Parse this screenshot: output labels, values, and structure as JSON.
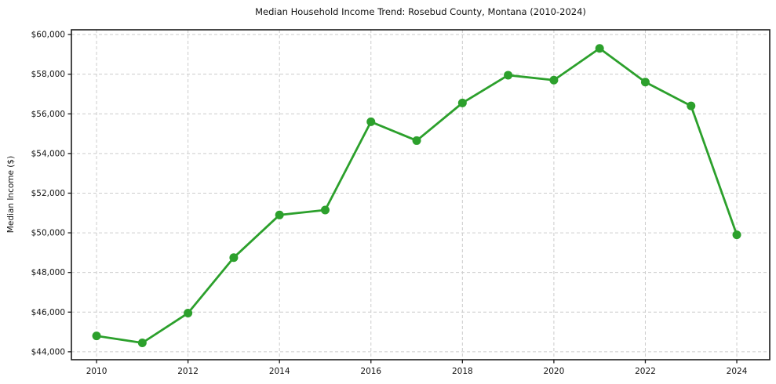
{
  "chart_data": {
    "type": "line",
    "title": "Median Household Income Trend: Rosebud County, Montana (2010-2024)",
    "xlabel": "",
    "ylabel": "Median Income ($)",
    "x": [
      2010,
      2011,
      2012,
      2013,
      2014,
      2015,
      2016,
      2017,
      2018,
      2019,
      2020,
      2021,
      2022,
      2023,
      2024
    ],
    "values": [
      44800,
      44450,
      45950,
      48750,
      50900,
      51150,
      55600,
      54650,
      56550,
      57950,
      57700,
      59300,
      57600,
      56400,
      49900
    ],
    "xlim": [
      2009.45,
      2024.72
    ],
    "ylim": [
      43600,
      60240
    ],
    "xticks": {
      "values": [
        2010,
        2012,
        2014,
        2016,
        2018,
        2020,
        2022,
        2024
      ],
      "labels": [
        "2010",
        "2012",
        "2014",
        "2016",
        "2018",
        "2020",
        "2022",
        "2024"
      ]
    },
    "yticks": {
      "values": [
        44000,
        46000,
        48000,
        50000,
        52000,
        54000,
        56000,
        58000,
        60000
      ],
      "labels": [
        "$44,000",
        "$46,000",
        "$48,000",
        "$50,000",
        "$52,000",
        "$54,000",
        "$56,000",
        "$58,000",
        "$60,000"
      ]
    },
    "grid": true,
    "grid_color": "#cccccc",
    "grid_style": "dashed",
    "line_color": "#2ca02c",
    "marker": "circle",
    "marker_color": "#2ca02c",
    "spine_color": "#1c1c1c",
    "legend_position": "none"
  }
}
